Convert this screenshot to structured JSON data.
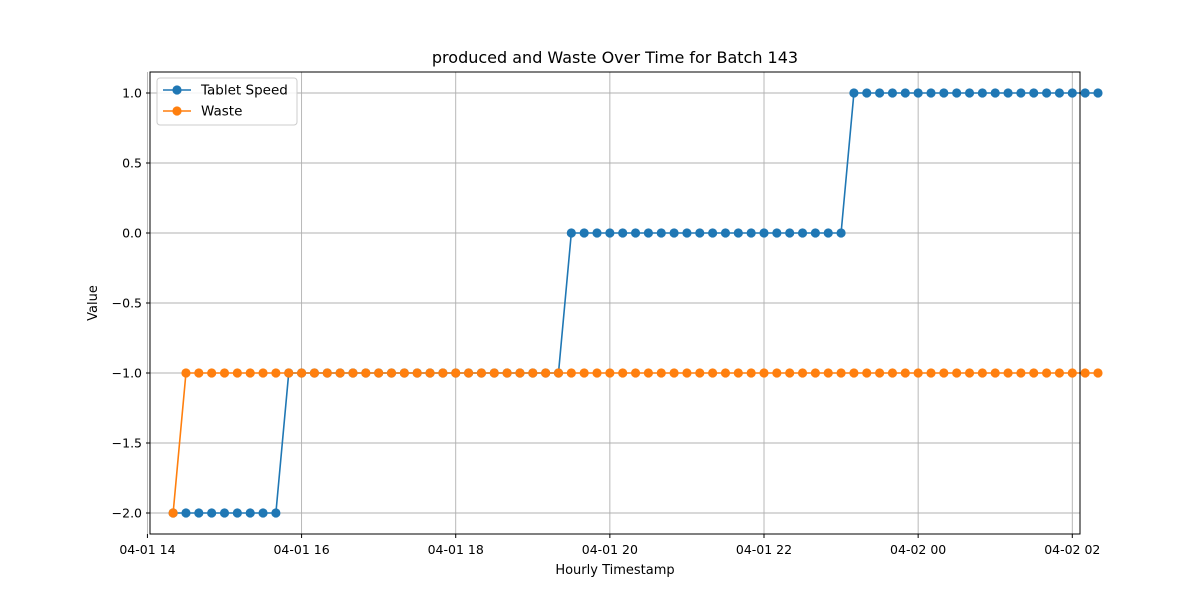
{
  "chart_data": {
    "type": "line",
    "title": "produced and Waste Over Time for Batch 143",
    "xlabel": "Hourly Timestamp",
    "ylabel": "Value",
    "xlim": [
      "2024-04-01 14:02",
      "2024-04-02 02:06"
    ],
    "ylim": [
      -2.15,
      1.15
    ],
    "grid": true,
    "legend_position": "top-left",
    "x_ticks": [
      {
        "value": "2024-04-01 14:00",
        "label": "04-01 14"
      },
      {
        "value": "2024-04-01 16:00",
        "label": "04-01 16"
      },
      {
        "value": "2024-04-01 18:00",
        "label": "04-01 18"
      },
      {
        "value": "2024-04-01 20:00",
        "label": "04-01 20"
      },
      {
        "value": "2024-04-01 22:00",
        "label": "04-01 22"
      },
      {
        "value": "2024-04-02 00:00",
        "label": "04-02 00"
      },
      {
        "value": "2024-04-02 02:00",
        "label": "04-02 02"
      }
    ],
    "y_ticks": [
      {
        "value": -2.0,
        "label": "−2.0"
      },
      {
        "value": -1.5,
        "label": "−1.5"
      },
      {
        "value": -1.0,
        "label": "−1.0"
      },
      {
        "value": -0.5,
        "label": "−0.5"
      },
      {
        "value": 0.0,
        "label": "0.0"
      },
      {
        "value": 0.5,
        "label": "0.5"
      },
      {
        "value": 1.0,
        "label": "1.0"
      }
    ],
    "series": [
      {
        "name": "Tablet Speed",
        "color": "#1f77b4",
        "start": "2024-04-01 14:20",
        "step_minutes": 10,
        "values": [
          -2,
          -2,
          -2,
          -2,
          -2,
          -2,
          -2,
          -2,
          -2,
          -1,
          -1,
          -1,
          -1,
          -1,
          -1,
          -1,
          -1,
          -1,
          -1,
          -1,
          -1,
          -1,
          -1,
          -1,
          -1,
          -1,
          -1,
          -1,
          -1,
          -1,
          -1,
          0,
          0,
          0,
          0,
          0,
          0,
          0,
          0,
          0,
          0,
          0,
          0,
          0,
          0,
          0,
          0,
          0,
          0,
          0,
          0,
          0,
          0,
          1,
          1,
          1,
          1,
          1,
          1,
          1,
          1,
          1,
          1,
          1,
          1,
          1,
          1,
          1,
          1,
          1,
          1,
          1,
          1
        ]
      },
      {
        "name": "Waste",
        "color": "#ff7f0e",
        "start": "2024-04-01 14:20",
        "step_minutes": 10,
        "values": [
          -2,
          -1,
          -1,
          -1,
          -1,
          -1,
          -1,
          -1,
          -1,
          -1,
          -1,
          -1,
          -1,
          -1,
          -1,
          -1,
          -1,
          -1,
          -1,
          -1,
          -1,
          -1,
          -1,
          -1,
          -1,
          -1,
          -1,
          -1,
          -1,
          -1,
          -1,
          -1,
          -1,
          -1,
          -1,
          -1,
          -1,
          -1,
          -1,
          -1,
          -1,
          -1,
          -1,
          -1,
          -1,
          -1,
          -1,
          -1,
          -1,
          -1,
          -1,
          -1,
          -1,
          -1,
          -1,
          -1,
          -1,
          -1,
          -1,
          -1,
          -1,
          -1,
          -1,
          -1,
          -1,
          -1,
          -1,
          -1,
          -1,
          -1,
          -1,
          -1,
          -1
        ]
      }
    ]
  }
}
